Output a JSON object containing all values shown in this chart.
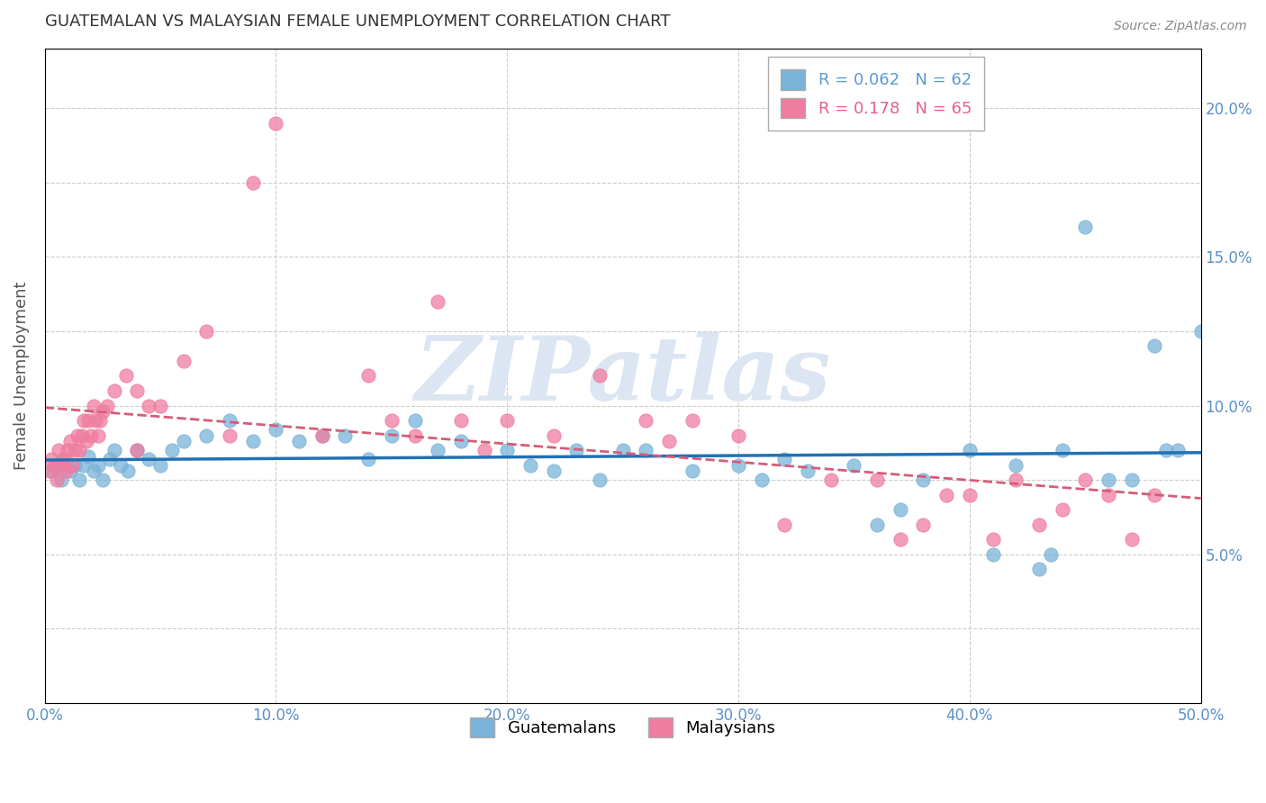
{
  "title": "GUATEMALAN VS MALAYSIAN FEMALE UNEMPLOYMENT CORRELATION CHART",
  "source": "Source: ZipAtlas.com",
  "ylabel": "Female Unemployment",
  "legend_r_n": [
    {
      "R": "0.062",
      "N": "62",
      "color": "#5b9bd5"
    },
    {
      "R": "0.178",
      "N": "65",
      "color": "#e8608a"
    }
  ],
  "gx": [
    0.3,
    0.5,
    0.7,
    0.9,
    1.1,
    1.3,
    1.5,
    1.7,
    1.9,
    2.1,
    2.3,
    2.5,
    2.8,
    3.0,
    3.3,
    3.6,
    4.0,
    4.5,
    5.0,
    5.5,
    6.0,
    7.0,
    8.0,
    9.0,
    10.0,
    11.0,
    12.0,
    13.0,
    14.0,
    15.0,
    16.0,
    17.0,
    18.0,
    20.0,
    21.0,
    22.0,
    23.0,
    24.0,
    25.0,
    26.0,
    28.0,
    30.0,
    31.0,
    32.0,
    33.0,
    35.0,
    37.0,
    38.0,
    40.0,
    41.0,
    42.0,
    43.0,
    44.0,
    45.0,
    46.0,
    47.0,
    48.0,
    49.0,
    50.0,
    43.5,
    36.0,
    48.5
  ],
  "gy": [
    7.8,
    8.0,
    7.5,
    8.2,
    7.8,
    8.0,
    7.5,
    8.0,
    8.3,
    7.8,
    8.0,
    7.5,
    8.2,
    8.5,
    8.0,
    7.8,
    8.5,
    8.2,
    8.0,
    8.5,
    8.8,
    9.0,
    9.5,
    8.8,
    9.2,
    8.8,
    9.0,
    9.0,
    8.2,
    9.0,
    9.5,
    8.5,
    8.8,
    8.5,
    8.0,
    7.8,
    8.5,
    7.5,
    8.5,
    8.5,
    7.8,
    8.0,
    7.5,
    8.2,
    7.8,
    8.0,
    6.5,
    7.5,
    8.5,
    5.0,
    8.0,
    4.5,
    8.5,
    16.0,
    7.5,
    7.5,
    12.0,
    8.5,
    12.5,
    5.0,
    6.0,
    8.5
  ],
  "mx": [
    0.2,
    0.3,
    0.4,
    0.5,
    0.6,
    0.7,
    0.8,
    0.9,
    1.0,
    1.1,
    1.2,
    1.3,
    1.4,
    1.5,
    1.6,
    1.7,
    1.8,
    1.9,
    2.0,
    2.1,
    2.2,
    2.3,
    2.4,
    2.5,
    2.7,
    3.0,
    3.5,
    4.0,
    4.5,
    5.0,
    6.0,
    7.0,
    8.0,
    9.0,
    10.0,
    12.0,
    14.0,
    15.0,
    16.0,
    17.0,
    18.0,
    19.0,
    20.0,
    22.0,
    24.0,
    26.0,
    27.0,
    28.0,
    30.0,
    32.0,
    34.0,
    36.0,
    37.0,
    38.0,
    39.0,
    40.0,
    41.0,
    42.0,
    43.0,
    44.0,
    45.0,
    46.0,
    47.0,
    48.0,
    4.0
  ],
  "my": [
    7.8,
    8.2,
    8.0,
    7.5,
    8.5,
    8.0,
    8.2,
    7.8,
    8.5,
    8.8,
    8.0,
    8.5,
    9.0,
    8.5,
    9.0,
    9.5,
    8.8,
    9.5,
    9.0,
    10.0,
    9.5,
    9.0,
    9.5,
    9.8,
    10.0,
    10.5,
    11.0,
    10.5,
    10.0,
    10.0,
    11.5,
    12.5,
    9.0,
    17.5,
    19.5,
    9.0,
    11.0,
    9.5,
    9.0,
    13.5,
    9.5,
    8.5,
    9.5,
    9.0,
    11.0,
    9.5,
    8.8,
    9.5,
    9.0,
    6.0,
    7.5,
    7.5,
    5.5,
    6.0,
    7.0,
    7.0,
    5.5,
    7.5,
    6.0,
    6.5,
    7.5,
    7.0,
    5.5,
    7.0,
    8.5
  ],
  "xlim": [
    0,
    50
  ],
  "ylim": [
    0,
    22
  ],
  "xticks": [
    0,
    10,
    20,
    30,
    40,
    50
  ],
  "yticks_right": [
    5.0,
    10.0,
    15.0,
    20.0
  ],
  "color_guatemalans": "#7ab3d8",
  "color_malaysians": "#f07ca0",
  "color_line_guatemalans": "#2171b5",
  "color_line_malaysians": "#d45c7a",
  "bg_color": "#ffffff",
  "watermark": "ZIPatlas",
  "watermark_color": "#dce6f3",
  "grid_color": "#cccccc",
  "title_color": "#333333",
  "axis_label_color": "#555555",
  "tick_color": "#5b8fc8",
  "source_text": "Source: ZipAtlas.com"
}
